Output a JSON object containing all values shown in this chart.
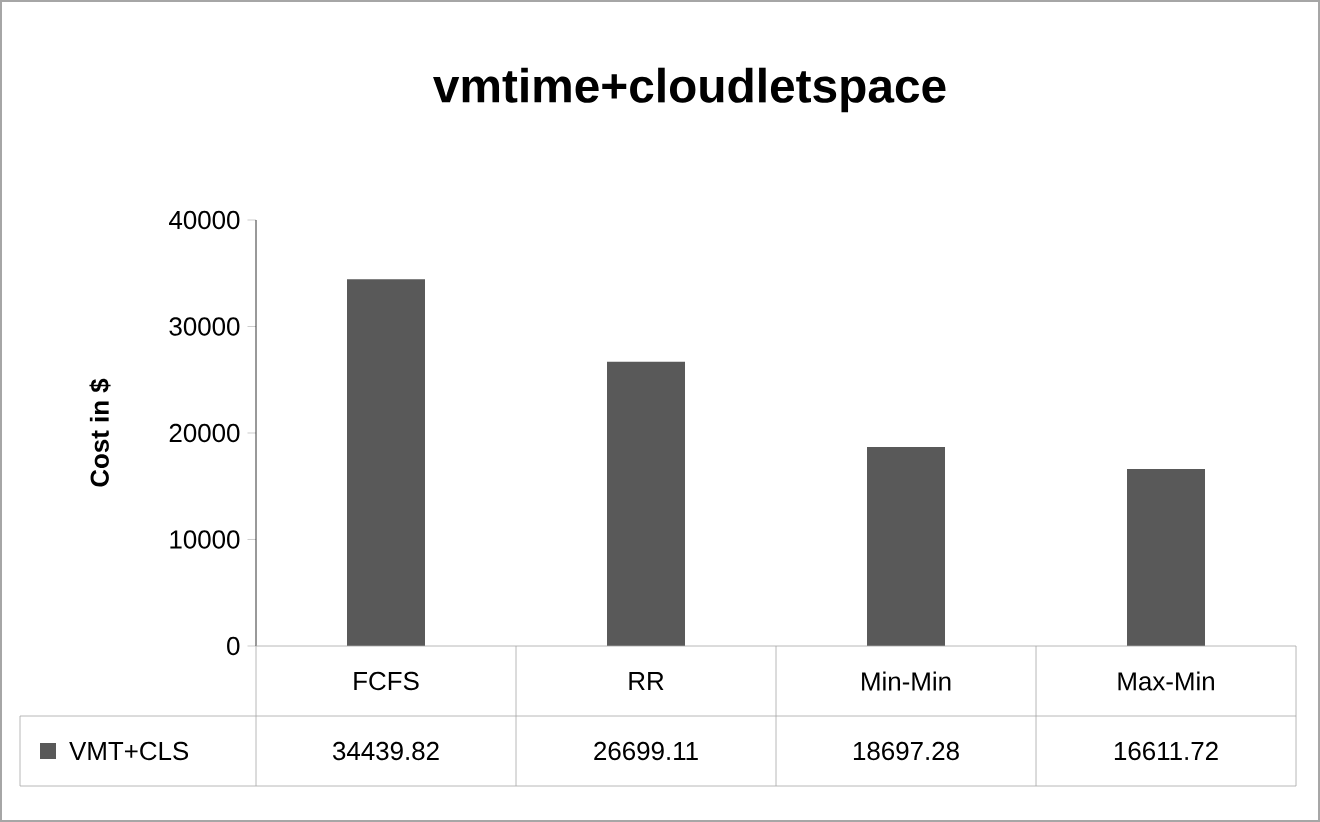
{
  "chart_data": {
    "type": "bar",
    "title": "vmtime+cloudletspace",
    "ylabel": "Cost in $",
    "categories": [
      "FCFS",
      "RR",
      "Min-Min",
      "Max-Min"
    ],
    "series": [
      {
        "name": "VMT+CLS",
        "color": "#595959",
        "values": [
          34439.82,
          26699.11,
          18697.28,
          16611.72
        ]
      }
    ],
    "ylim": [
      0,
      40000
    ],
    "yticks": [
      0,
      10000,
      20000,
      30000,
      40000
    ],
    "data_labels": true,
    "legend": "bottom"
  }
}
